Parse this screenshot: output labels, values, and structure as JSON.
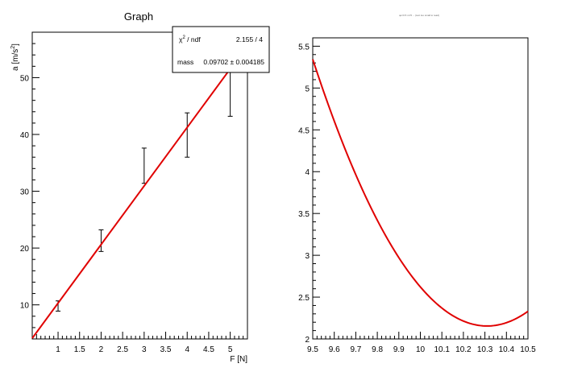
{
  "chart_data": [
    {
      "type": "scatter",
      "title": "Graph",
      "xlabel": "F [N]",
      "ylabel_main": "a [m/s",
      "ylabel_sup": "2",
      "ylabel_end": "]",
      "xlim": [
        0.4,
        5.4
      ],
      "ylim": [
        4,
        58
      ],
      "x_ticks": [
        1,
        1.5,
        2,
        2.5,
        3,
        3.5,
        4,
        4.5,
        5
      ],
      "x_tick_labels": [
        "1",
        "1.5",
        "2",
        "2.5",
        "3",
        "3.5",
        "4",
        "4.5",
        "5"
      ],
      "y_ticks": [
        10,
        20,
        30,
        40,
        50
      ],
      "y_tick_labels": [
        "10",
        "20",
        "30",
        "40",
        "50"
      ],
      "points": [
        {
          "x": 1,
          "y": 9.8,
          "ey_low": 8.9,
          "ey_high": 10.7
        },
        {
          "x": 2,
          "y": 21.3,
          "ey_low": 19.4,
          "ey_high": 23.2
        },
        {
          "x": 3,
          "y": 34.5,
          "ey_low": 31.4,
          "ey_high": 37.6
        },
        {
          "x": 4,
          "y": 39.9,
          "ey_low": 36.0,
          "ey_high": 43.8
        },
        {
          "x": 5,
          "y": 50.9,
          "ey_low": 43.2,
          "ey_high": 58.0
        }
      ],
      "fit": {
        "slope": 10.31,
        "line_color": "#e00000"
      },
      "stats_box": {
        "chi2_symbol": "χ",
        "chi2_sup": "2",
        "chi2_rest": " / ndf",
        "chi2_value": "2.155 / 4",
        "param_name": "mass",
        "param_value": "0.09702 ± 0.004185"
      }
    },
    {
      "type": "line",
      "title": "qe=0.5 m=5 ... (text too small to read)",
      "xlim": [
        9.5,
        10.5
      ],
      "ylim": [
        2,
        5.6
      ],
      "x_ticks": [
        9.5,
        9.6,
        9.7,
        9.8,
        9.9,
        10,
        10.1,
        10.2,
        10.3,
        10.4,
        10.5
      ],
      "x_tick_labels": [
        "9.5",
        "9.6",
        "9.7",
        "9.8",
        "9.9",
        "10",
        "10.1",
        "10.2",
        "10.3",
        "10.4",
        "10.5"
      ],
      "y_ticks": [
        2,
        2.5,
        3,
        3.5,
        4,
        4.5,
        5,
        5.5
      ],
      "y_tick_labels": [
        "2",
        "2.5",
        "3",
        "3.5",
        "4",
        "4.5",
        "5",
        "5.5"
      ],
      "curve": {
        "min_x": 10.31,
        "min_y": 2.155,
        "curvature": 4.86,
        "line_color": "#e00000"
      }
    }
  ]
}
